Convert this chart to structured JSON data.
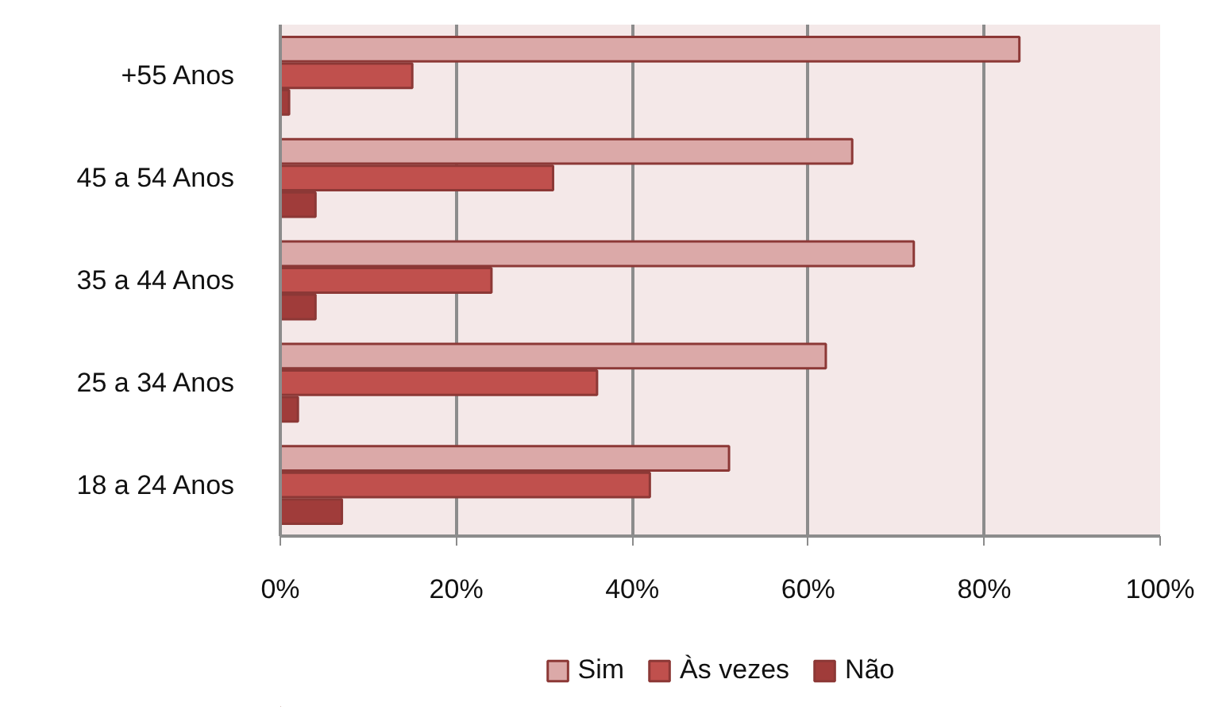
{
  "chart_data": {
    "type": "bar",
    "orientation": "horizontal",
    "categories": [
      "+55 Anos",
      "45 a 54 Anos",
      "35 a 44 Anos",
      "25 a 34 Anos",
      "18 a 24 Anos"
    ],
    "series": [
      {
        "name": "Sim",
        "color": "#dba9a8",
        "values": [
          84,
          65,
          72,
          62,
          51
        ]
      },
      {
        "name": "Às vezes",
        "color": "#c0504d",
        "values": [
          15,
          31,
          24,
          36,
          42
        ]
      },
      {
        "name": "Não",
        "color": "#a03c3a",
        "values": [
          1,
          4,
          4,
          2,
          7
        ]
      }
    ],
    "xlim": [
      0,
      100
    ],
    "xticks": [
      {
        "value": 0,
        "label": "0%"
      },
      {
        "value": 20,
        "label": "20%"
      },
      {
        "value": 40,
        "label": "40%"
      },
      {
        "value": 60,
        "label": "60%"
      },
      {
        "value": 80,
        "label": "80%"
      },
      {
        "value": 100,
        "label": "100%"
      }
    ],
    "grid": "x",
    "legend": "bottom"
  }
}
